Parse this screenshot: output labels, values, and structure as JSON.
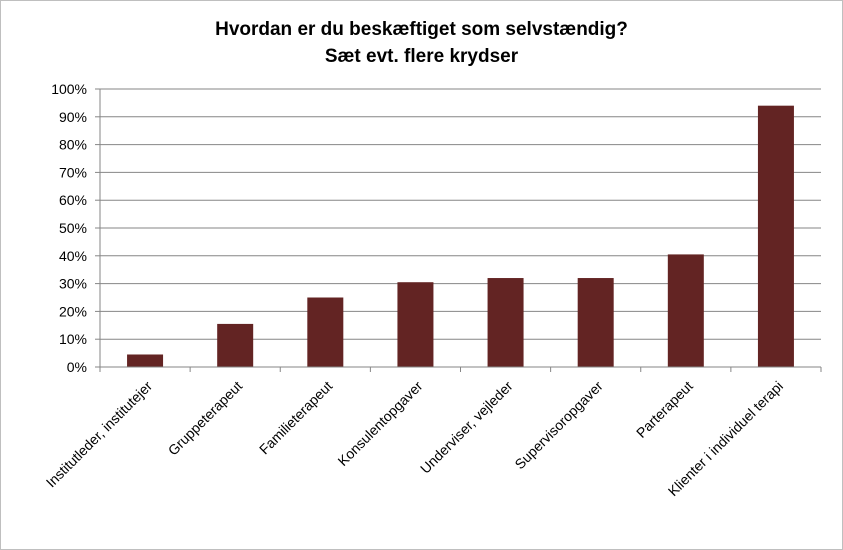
{
  "chart_data": {
    "type": "bar",
    "title": "Hvordan er du beskæftiget som selvstændig?",
    "subtitle": "Sæt evt. flere krydser",
    "xlabel": "",
    "ylabel": "",
    "categories": [
      "Institutleder, institutejer",
      "Gruppeterapeut",
      "Familieterapeut",
      "Konsulentopgaver",
      "Underviser, vejleder",
      "Supervisoropgaver",
      "Parterapeut",
      "Klienter i individuel terapi"
    ],
    "values": [
      4.5,
      15.5,
      25,
      30.5,
      32,
      32,
      40.5,
      94
    ],
    "ylim": [
      0,
      100
    ],
    "yticks": [
      "0%",
      "10%",
      "20%",
      "30%",
      "40%",
      "50%",
      "60%",
      "70%",
      "80%",
      "90%",
      "100%"
    ],
    "grid": true,
    "legend": "none",
    "bar_color": "#632423"
  }
}
